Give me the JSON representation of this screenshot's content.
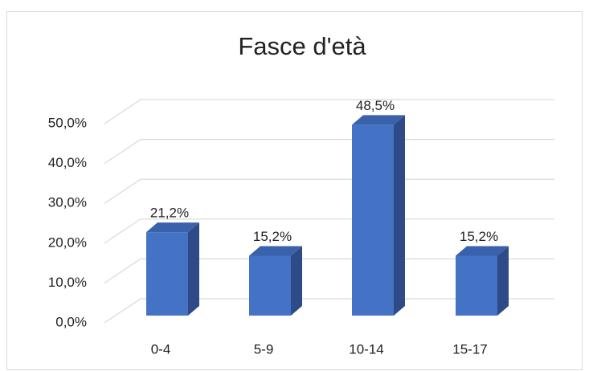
{
  "chart_data": {
    "type": "bar",
    "title": "Fasce d'età",
    "categories": [
      "0-4",
      "5-9",
      "10-14",
      "15-17"
    ],
    "values": [
      21.2,
      15.2,
      48.5,
      15.2
    ],
    "value_labels": [
      "21,2%",
      "15,2%",
      "48,5%",
      "15,2%"
    ],
    "color": "#4472c4",
    "ylim": [
      0,
      50
    ],
    "yticks": [
      {
        "value": 0,
        "label": "0,0%"
      },
      {
        "value": 10,
        "label": "10,0%"
      },
      {
        "value": 20,
        "label": "20,0%"
      },
      {
        "value": 30,
        "label": "30,0%"
      },
      {
        "value": 40,
        "label": "40,0%"
      },
      {
        "value": 50,
        "label": "50,0%"
      }
    ],
    "grid": true
  }
}
